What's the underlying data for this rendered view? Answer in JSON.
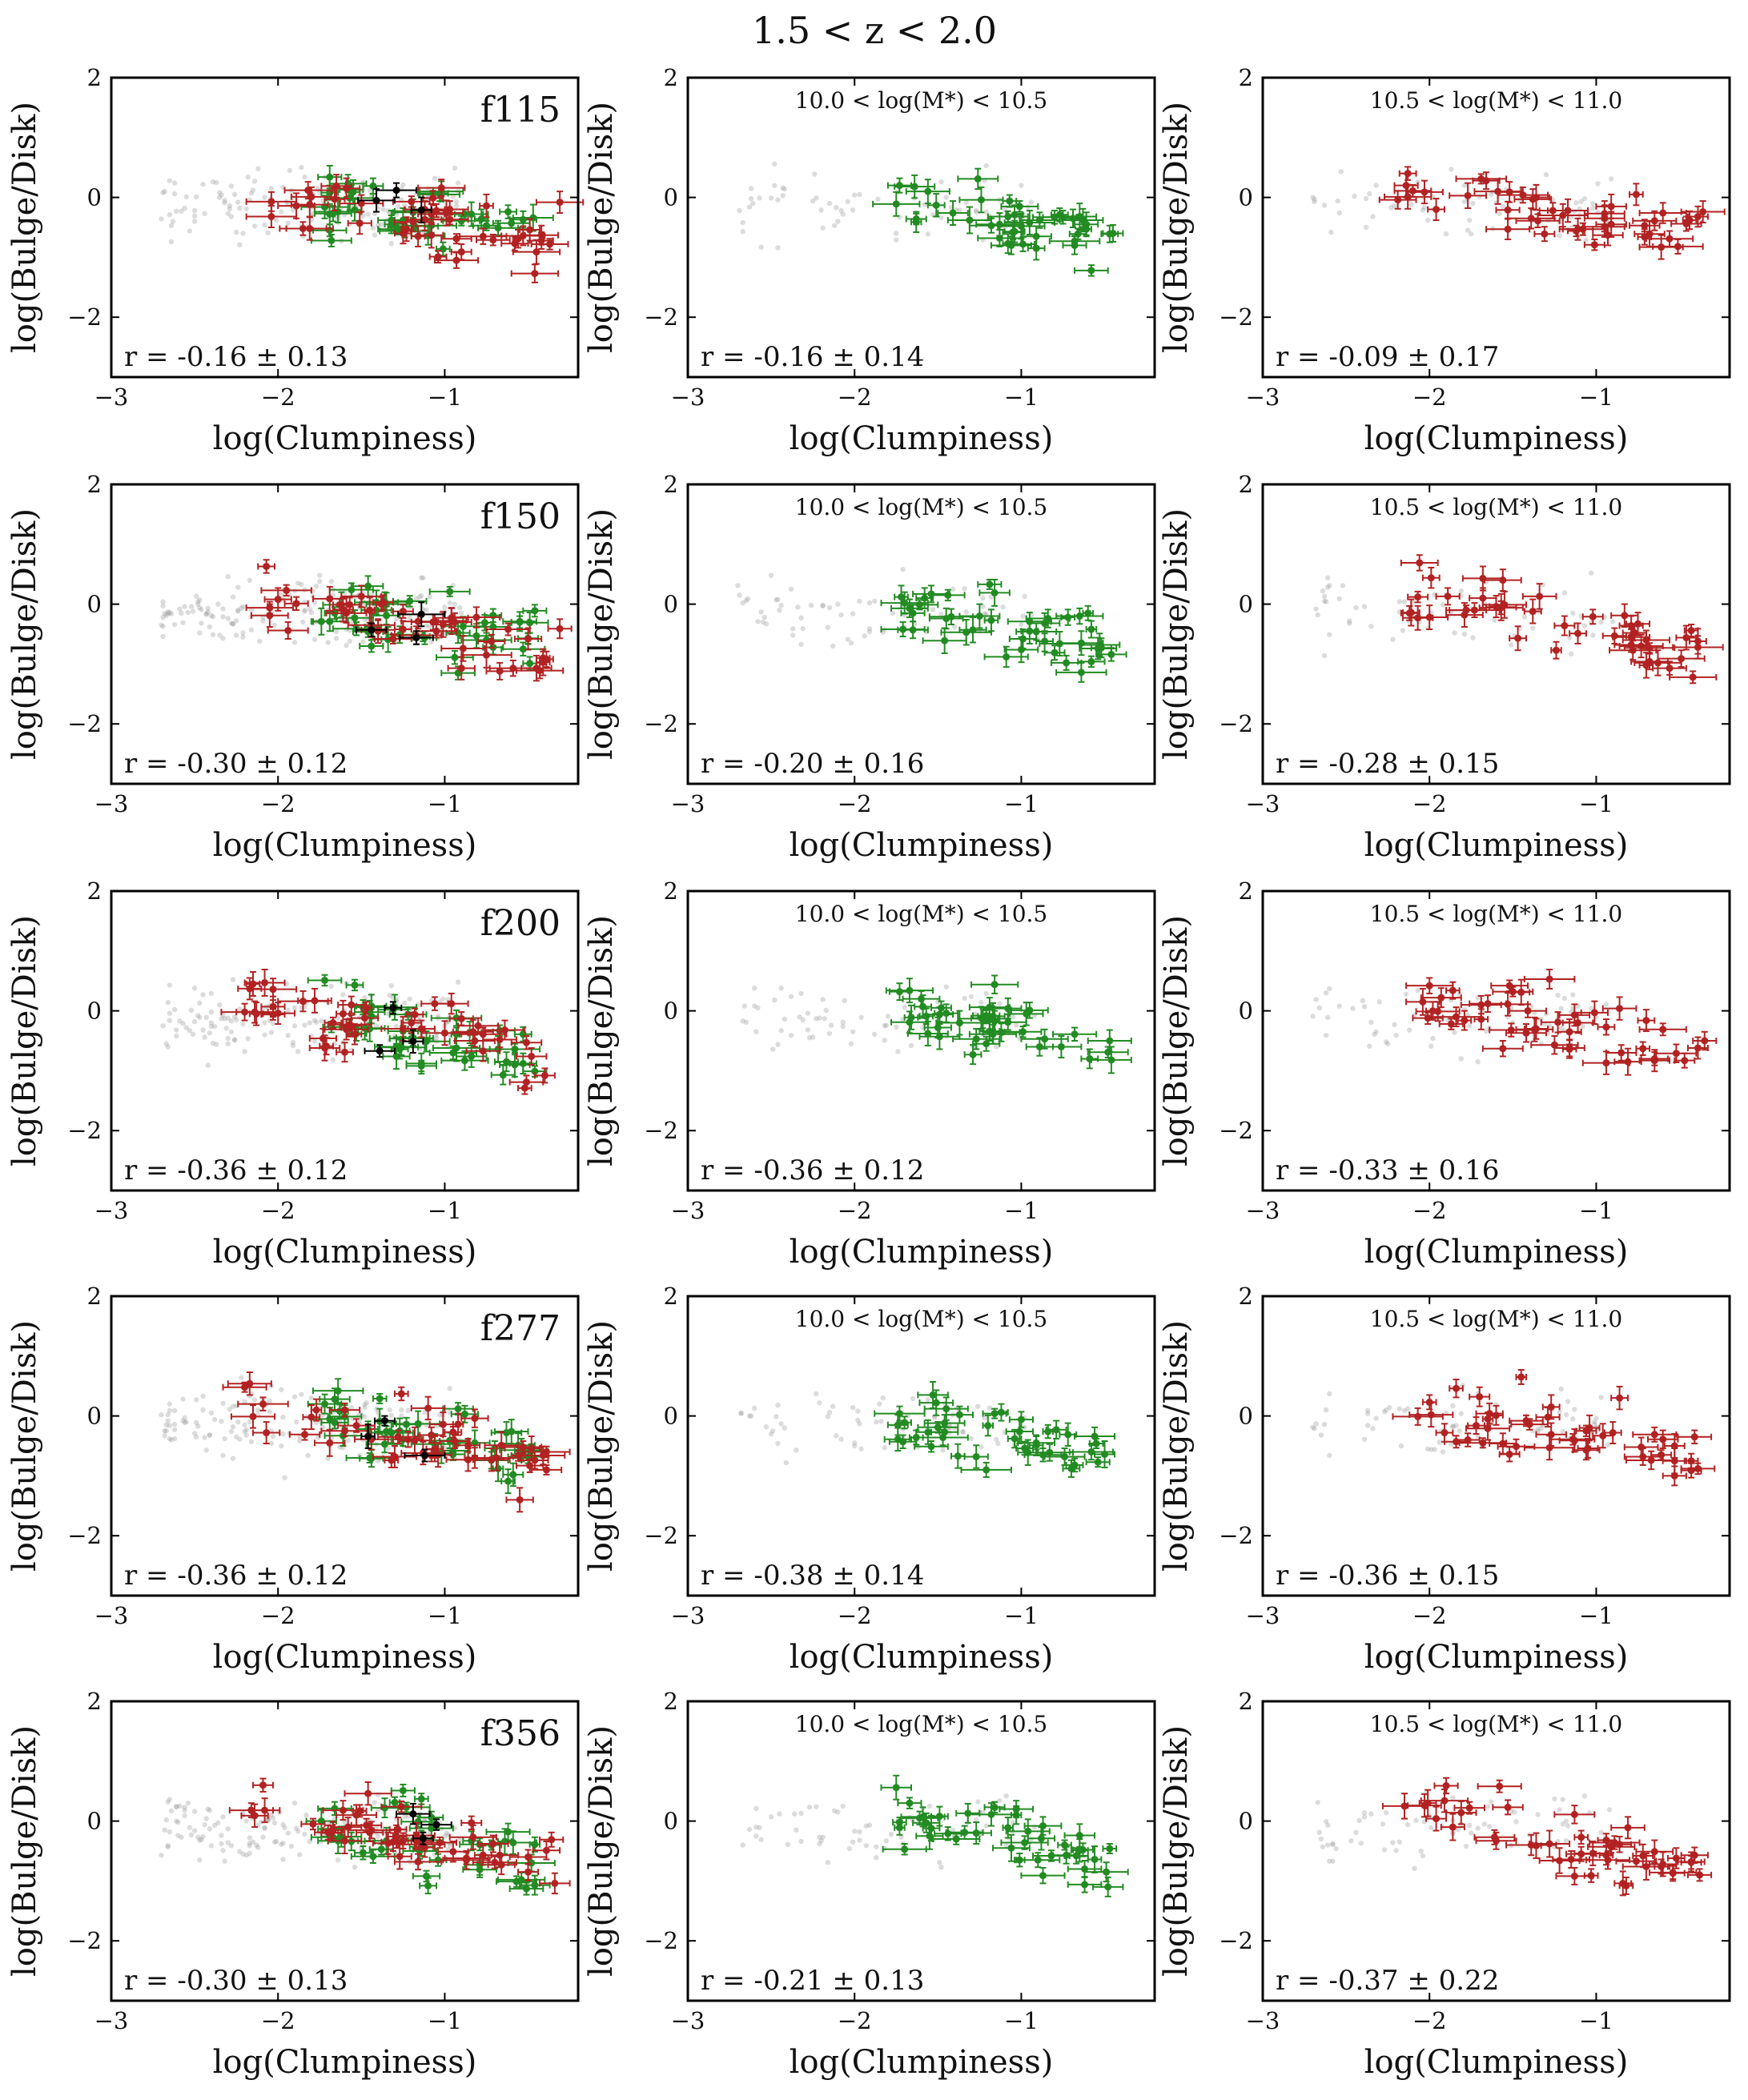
{
  "figure": {
    "title": "1.5 < z < 2.0"
  },
  "colors": {
    "red": "#b22222",
    "green": "#228b22",
    "gray": "#9a9a9a",
    "black": "#000000"
  },
  "chart_data": [
    {
      "type": "scatter",
      "band": "f115",
      "mass_bin": "",
      "r_text": "r = -0.16 ± 0.13",
      "xlabel": "log(Clumpiness)",
      "ylabel": "log(Bulge/Disk)",
      "xlim": [
        -3,
        -0.2
      ],
      "ylim": [
        -3,
        2
      ],
      "xticks": [
        "−3",
        "−2",
        "−1"
      ],
      "yticks": [
        "−2",
        "0",
        "2"
      ],
      "series": {
        "gray": [],
        "red": [],
        "green": [],
        "black": []
      }
    },
    {
      "type": "scatter",
      "band": "",
      "mass_bin": "10.0 < log(M*) < 10.5",
      "r_text": "r = -0.16 ± 0.14",
      "xlabel": "log(Clumpiness)",
      "ylabel": "log(Bulge/Disk)",
      "xlim": [
        -3,
        -0.2
      ],
      "ylim": [
        -3,
        2
      ],
      "xticks": [
        "−3",
        "−2",
        "−1"
      ],
      "yticks": [
        "−2",
        "0",
        "2"
      ],
      "series": {
        "gray": [],
        "green": []
      }
    },
    {
      "type": "scatter",
      "band": "",
      "mass_bin": "10.5 < log(M*) < 11.0",
      "r_text": "r = -0.09 ± 0.17",
      "xlabel": "log(Clumpiness)",
      "ylabel": "log(Bulge/Disk)",
      "xlim": [
        -3,
        -0.2
      ],
      "ylim": [
        -3,
        2
      ],
      "xticks": [
        "−3",
        "−2",
        "−1"
      ],
      "yticks": [
        "−2",
        "0",
        "2"
      ],
      "series": {
        "gray": [],
        "red": []
      }
    },
    {
      "type": "scatter",
      "band": "f150",
      "mass_bin": "",
      "r_text": "r = -0.30 ± 0.12",
      "xlabel": "log(Clumpiness)",
      "ylabel": "log(Bulge/Disk)",
      "xlim": [
        -3,
        -0.2
      ],
      "ylim": [
        -3,
        2
      ],
      "xticks": [
        "−3",
        "−2",
        "−1"
      ],
      "yticks": [
        "−2",
        "0",
        "2"
      ],
      "series": {
        "gray": [],
        "red": [],
        "green": [],
        "black": []
      }
    },
    {
      "type": "scatter",
      "band": "",
      "mass_bin": "10.0 < log(M*) < 10.5",
      "r_text": "r = -0.20 ± 0.16",
      "xlabel": "log(Clumpiness)",
      "ylabel": "log(Bulge/Disk)",
      "xlim": [
        -3,
        -0.2
      ],
      "ylim": [
        -3,
        2
      ],
      "xticks": [
        "−3",
        "−2",
        "−1"
      ],
      "yticks": [
        "−2",
        "0",
        "2"
      ],
      "series": {
        "gray": [],
        "green": []
      }
    },
    {
      "type": "scatter",
      "band": "",
      "mass_bin": "10.5 < log(M*) < 11.0",
      "r_text": "r = -0.28 ± 0.15",
      "xlabel": "log(Clumpiness)",
      "ylabel": "log(Bulge/Disk)",
      "xlim": [
        -3,
        -0.2
      ],
      "ylim": [
        -3,
        2
      ],
      "xticks": [
        "−3",
        "−2",
        "−1"
      ],
      "yticks": [
        "−2",
        "0",
        "2"
      ],
      "series": {
        "gray": [],
        "red": []
      }
    },
    {
      "type": "scatter",
      "band": "f200",
      "mass_bin": "",
      "r_text": "r = -0.36 ± 0.12",
      "xlabel": "log(Clumpiness)",
      "ylabel": "log(Bulge/Disk)",
      "xlim": [
        -3,
        -0.2
      ],
      "ylim": [
        -3,
        2
      ],
      "xticks": [
        "−3",
        "−2",
        "−1"
      ],
      "yticks": [
        "−2",
        "0",
        "2"
      ],
      "series": {
        "gray": [],
        "red": [],
        "green": [],
        "black": []
      }
    },
    {
      "type": "scatter",
      "band": "",
      "mass_bin": "10.0 < log(M*) < 10.5",
      "r_text": "r = -0.36 ± 0.12",
      "xlabel": "log(Clumpiness)",
      "ylabel": "log(Bulge/Disk)",
      "xlim": [
        -3,
        -0.2
      ],
      "ylim": [
        -3,
        2
      ],
      "xticks": [
        "−3",
        "−2",
        "−1"
      ],
      "yticks": [
        "−2",
        "0",
        "2"
      ],
      "series": {
        "gray": [],
        "green": []
      }
    },
    {
      "type": "scatter",
      "band": "",
      "mass_bin": "10.5 < log(M*) < 11.0",
      "r_text": "r = -0.33 ± 0.16",
      "xlabel": "log(Clumpiness)",
      "ylabel": "log(Bulge/Disk)",
      "xlim": [
        -3,
        -0.2
      ],
      "ylim": [
        -3,
        2
      ],
      "xticks": [
        "−3",
        "−2",
        "−1"
      ],
      "yticks": [
        "−2",
        "0",
        "2"
      ],
      "series": {
        "gray": [],
        "red": []
      }
    },
    {
      "type": "scatter",
      "band": "f277",
      "mass_bin": "",
      "r_text": "r = -0.36 ± 0.12",
      "xlabel": "log(Clumpiness)",
      "ylabel": "log(Bulge/Disk)",
      "xlim": [
        -3,
        -0.2
      ],
      "ylim": [
        -3,
        2
      ],
      "xticks": [
        "−3",
        "−2",
        "−1"
      ],
      "yticks": [
        "−2",
        "0",
        "2"
      ],
      "series": {
        "gray": [],
        "red": [],
        "green": [],
        "black": []
      }
    },
    {
      "type": "scatter",
      "band": "",
      "mass_bin": "10.0 < log(M*) < 10.5",
      "r_text": "r = -0.38 ± 0.14",
      "xlabel": "log(Clumpiness)",
      "ylabel": "log(Bulge/Disk)",
      "xlim": [
        -3,
        -0.2
      ],
      "ylim": [
        -3,
        2
      ],
      "xticks": [
        "−3",
        "−2",
        "−1"
      ],
      "yticks": [
        "−2",
        "0",
        "2"
      ],
      "series": {
        "gray": [],
        "green": []
      }
    },
    {
      "type": "scatter",
      "band": "",
      "mass_bin": "10.5 < log(M*) < 11.0",
      "r_text": "r = -0.36 ± 0.15",
      "xlabel": "log(Clumpiness)",
      "ylabel": "log(Bulge/Disk)",
      "xlim": [
        -3,
        -0.2
      ],
      "ylim": [
        -3,
        2
      ],
      "xticks": [
        "−3",
        "−2",
        "−1"
      ],
      "yticks": [
        "−2",
        "0",
        "2"
      ],
      "series": {
        "gray": [],
        "red": []
      }
    },
    {
      "type": "scatter",
      "band": "f356",
      "mass_bin": "",
      "r_text": "r = -0.30 ± 0.13",
      "xlabel": "log(Clumpiness)",
      "ylabel": "log(Bulge/Disk)",
      "xlim": [
        -3,
        -0.2
      ],
      "ylim": [
        -3,
        2
      ],
      "xticks": [
        "−3",
        "−2",
        "−1"
      ],
      "yticks": [
        "−2",
        "0",
        "2"
      ],
      "series": {
        "gray": [],
        "red": [],
        "green": [],
        "black": []
      }
    },
    {
      "type": "scatter",
      "band": "",
      "mass_bin": "10.0 < log(M*) < 10.5",
      "r_text": "r = -0.21 ± 0.13",
      "xlabel": "log(Clumpiness)",
      "ylabel": "log(Bulge/Disk)",
      "xlim": [
        -3,
        -0.2
      ],
      "ylim": [
        -3,
        2
      ],
      "xticks": [
        "−3",
        "−2",
        "−1"
      ],
      "yticks": [
        "−2",
        "0",
        "2"
      ],
      "series": {
        "gray": [],
        "green": []
      }
    },
    {
      "type": "scatter",
      "band": "",
      "mass_bin": "10.5 < log(M*) < 11.0",
      "r_text": "r = -0.37 ± 0.22",
      "xlabel": "log(Clumpiness)",
      "ylabel": "log(Bulge/Disk)",
      "xlim": [
        -3,
        -0.2
      ],
      "ylim": [
        -3,
        2
      ],
      "xticks": [
        "−3",
        "−2",
        "−1"
      ],
      "yticks": [
        "−2",
        "0",
        "2"
      ],
      "series": {
        "gray": [],
        "red": []
      }
    }
  ]
}
